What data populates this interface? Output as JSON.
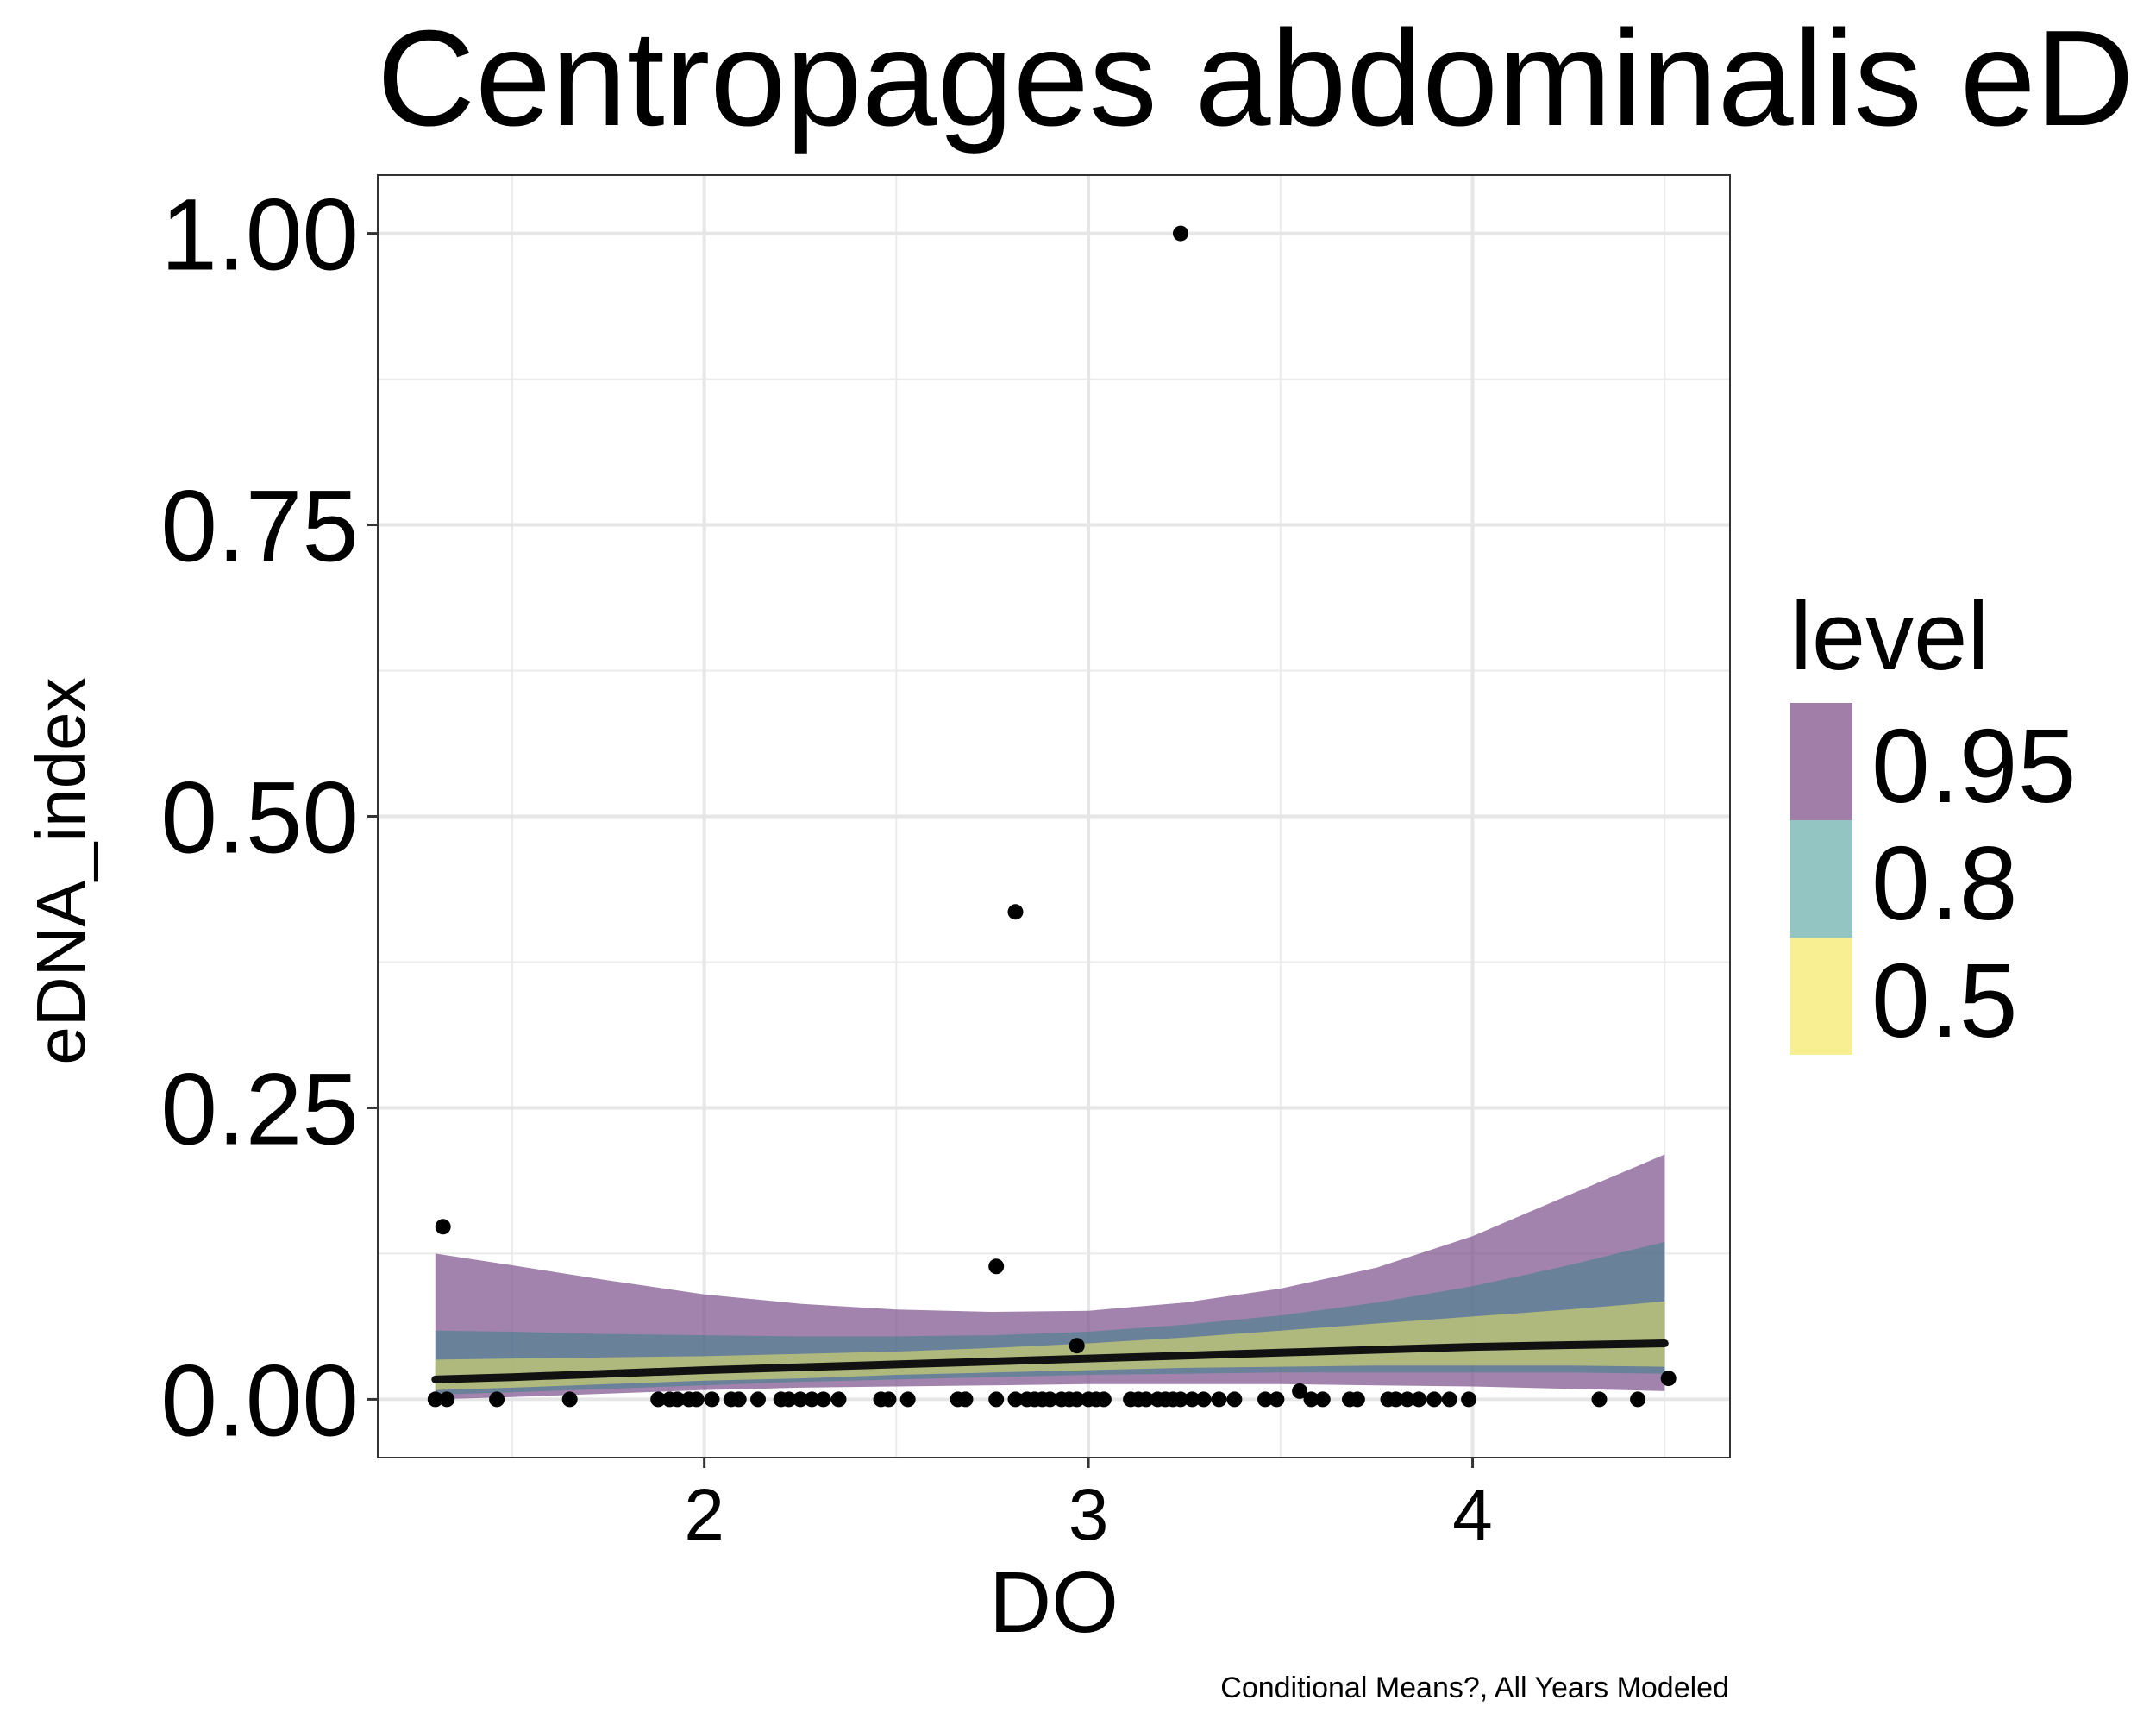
{
  "chart_data": {
    "type": "line",
    "title": "Centropages abdominalis eD",
    "xlabel": "DO",
    "ylabel": "eDNA_index",
    "caption": "Conditional Means?, All Years Modeled",
    "xlim": [
      1.15,
      4.67
    ],
    "ylim": [
      -0.05,
      1.05
    ],
    "x_ticks": [
      2,
      3,
      4
    ],
    "x_tick_labels": [
      "2",
      "3",
      "4"
    ],
    "y_ticks": [
      0,
      0.25,
      0.5,
      0.75,
      1.0
    ],
    "y_tick_labels": [
      "0.00",
      "0.25",
      "0.50",
      "0.75",
      "1.00"
    ],
    "grid": true,
    "legend": {
      "title": "level",
      "position": "right",
      "entries": [
        {
          "label": "0.95",
          "color": "#a17ea8"
        },
        {
          "label": "0.8",
          "color": "#93c6c2"
        },
        {
          "label": "0.5",
          "color": "#f8ef93"
        }
      ]
    },
    "fit_line": {
      "x": [
        1.3,
        1.5,
        2.0,
        2.5,
        3.0,
        3.5,
        4.0,
        4.5
      ],
      "y": [
        0.017,
        0.019,
        0.025,
        0.03,
        0.035,
        0.04,
        0.045,
        0.048
      ]
    },
    "ribbons": [
      {
        "level": "0.95",
        "color": "#7b4f8a",
        "opacity": 0.7,
        "x": [
          1.3,
          1.5,
          1.75,
          2.0,
          2.25,
          2.5,
          2.75,
          3.0,
          3.25,
          3.5,
          3.75,
          4.0,
          4.25,
          4.5
        ],
        "upper": [
          0.125,
          0.115,
          0.102,
          0.09,
          0.082,
          0.077,
          0.075,
          0.076,
          0.083,
          0.095,
          0.113,
          0.14,
          0.175,
          0.21
        ],
        "lower": [
          0.0,
          0.002,
          0.005,
          0.008,
          0.01,
          0.011,
          0.012,
          0.013,
          0.013,
          0.013,
          0.012,
          0.011,
          0.009,
          0.007
        ]
      },
      {
        "level": "0.8",
        "color": "#3d7f8a",
        "opacity": 0.55,
        "x": [
          1.3,
          1.5,
          1.75,
          2.0,
          2.25,
          2.5,
          2.75,
          3.0,
          3.25,
          3.5,
          3.75,
          4.0,
          4.25,
          4.5
        ],
        "upper": [
          0.059,
          0.058,
          0.056,
          0.055,
          0.054,
          0.054,
          0.055,
          0.058,
          0.064,
          0.072,
          0.083,
          0.097,
          0.115,
          0.135
        ],
        "lower": [
          0.004,
          0.006,
          0.009,
          0.012,
          0.015,
          0.017,
          0.019,
          0.021,
          0.022,
          0.023,
          0.023,
          0.023,
          0.023,
          0.022
        ]
      },
      {
        "level": "0.5",
        "color": "#dfe06a",
        "opacity": 0.6,
        "x": [
          1.3,
          1.5,
          1.75,
          2.0,
          2.25,
          2.5,
          2.75,
          3.0,
          3.25,
          3.5,
          3.75,
          4.0,
          4.25,
          4.5
        ],
        "upper": [
          0.034,
          0.035,
          0.036,
          0.037,
          0.039,
          0.041,
          0.044,
          0.048,
          0.053,
          0.059,
          0.065,
          0.071,
          0.077,
          0.084
        ],
        "lower": [
          0.008,
          0.01,
          0.013,
          0.016,
          0.018,
          0.021,
          0.023,
          0.025,
          0.027,
          0.028,
          0.029,
          0.029,
          0.029,
          0.028
        ]
      }
    ],
    "points": {
      "x": [
        1.3,
        1.33,
        1.32,
        1.46,
        1.65,
        1.88,
        1.91,
        1.93,
        1.96,
        1.98,
        2.02,
        2.07,
        2.09,
        2.14,
        2.2,
        2.22,
        2.25,
        2.28,
        2.31,
        2.35,
        2.46,
        2.48,
        2.53,
        2.66,
        2.68,
        2.76,
        2.76,
        2.81,
        2.81,
        2.84,
        2.86,
        2.88,
        2.9,
        2.93,
        2.95,
        2.97,
        2.97,
        3.0,
        3.02,
        3.04,
        3.11,
        3.13,
        3.15,
        3.18,
        3.2,
        3.22,
        3.24,
        3.24,
        3.27,
        3.3,
        3.34,
        3.38,
        3.46,
        3.49,
        3.55,
        3.58,
        3.61,
        3.68,
        3.7,
        3.78,
        3.8,
        3.83,
        3.86,
        3.9,
        3.94,
        3.99,
        4.33,
        4.43,
        4.51
      ],
      "y": [
        0.0,
        0.0,
        0.148,
        0.0,
        0.0,
        0.0,
        0.0,
        0.0,
        0.0,
        0.0,
        0.0,
        0.0,
        0.0,
        0.0,
        0.0,
        0.0,
        0.0,
        0.0,
        0.0,
        0.0,
        0.0,
        0.0,
        0.0,
        0.0,
        0.0,
        0.0,
        0.114,
        0.418,
        0.0,
        0.0,
        0.0,
        0.0,
        0.0,
        0.0,
        0.0,
        0.0,
        0.046,
        0.0,
        0.0,
        0.0,
        0.0,
        0.0,
        0.0,
        0.0,
        0.0,
        0.0,
        0.0,
        1.0,
        0.0,
        0.0,
        0.0,
        0.0,
        0.0,
        0.0,
        0.007,
        0.0,
        0.0,
        0.0,
        0.0,
        0.0,
        0.0,
        0.0,
        0.0,
        0.0,
        0.0,
        0.0,
        0.0,
        0.0,
        0.018
      ]
    }
  }
}
